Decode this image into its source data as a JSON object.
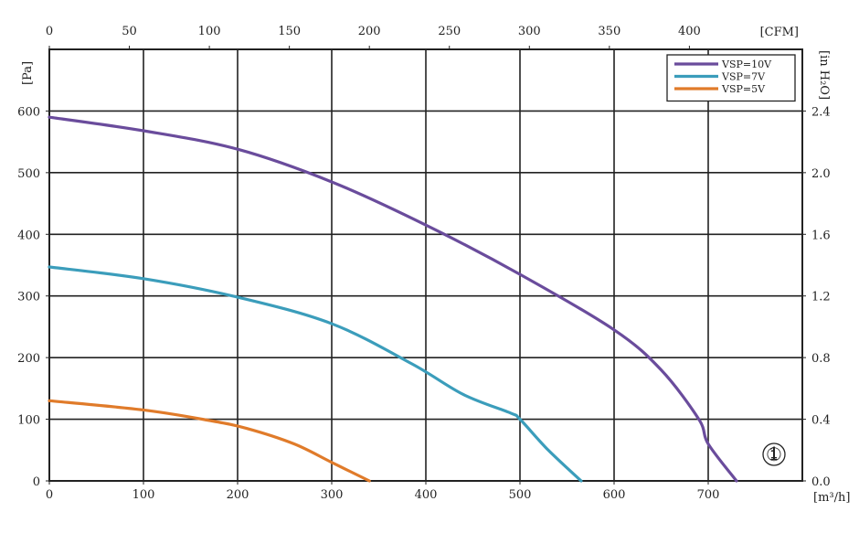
{
  "chart_data": {
    "type": "line",
    "x_unit_bottom": "[m³/h]",
    "x_unit_top": "[CFM]",
    "y_unit_left": "[Pa]",
    "y_unit_right": "[in H₂O]",
    "xlim_bottom": [
      0,
      800
    ],
    "xlim_top": [
      0,
      470.6
    ],
    "ylim_left": [
      0,
      700
    ],
    "ylim_right": [
      0,
      2.8
    ],
    "x_ticks_bottom": [
      0,
      100,
      200,
      300,
      400,
      500,
      600,
      700
    ],
    "x_ticks_top": [
      0,
      50,
      100,
      150,
      200,
      250,
      300,
      350,
      400
    ],
    "y_ticks_left": [
      0,
      100,
      200,
      300,
      400,
      500,
      600
    ],
    "y_ticks_right": [
      "0.0",
      "0.4",
      "0.8",
      "1.2",
      "1.6",
      "2.0",
      "2.4"
    ],
    "grid": true,
    "legend_position": "top-right",
    "marker_label": "①",
    "series": [
      {
        "name": "VSP=10V",
        "color": "#6a4c9c",
        "x": [
          0,
          100,
          200,
          300,
          400,
          500,
          600,
          650,
          690,
          700,
          730
        ],
        "y": [
          590,
          568,
          538,
          485,
          415,
          335,
          245,
          180,
          100,
          60,
          0
        ]
      },
      {
        "name": "VSP=7V",
        "color": "#3b9dbb",
        "x": [
          0,
          100,
          200,
          300,
          385,
          440,
          490,
          500,
          530,
          565
        ],
        "y": [
          347,
          328,
          298,
          255,
          190,
          140,
          110,
          100,
          50,
          0
        ]
      },
      {
        "name": "VSP=5V",
        "color": "#e07b2a",
        "x": [
          0,
          100,
          170,
          210,
          260,
          300,
          340
        ],
        "y": [
          130,
          115,
          98,
          85,
          60,
          30,
          0
        ]
      }
    ]
  }
}
